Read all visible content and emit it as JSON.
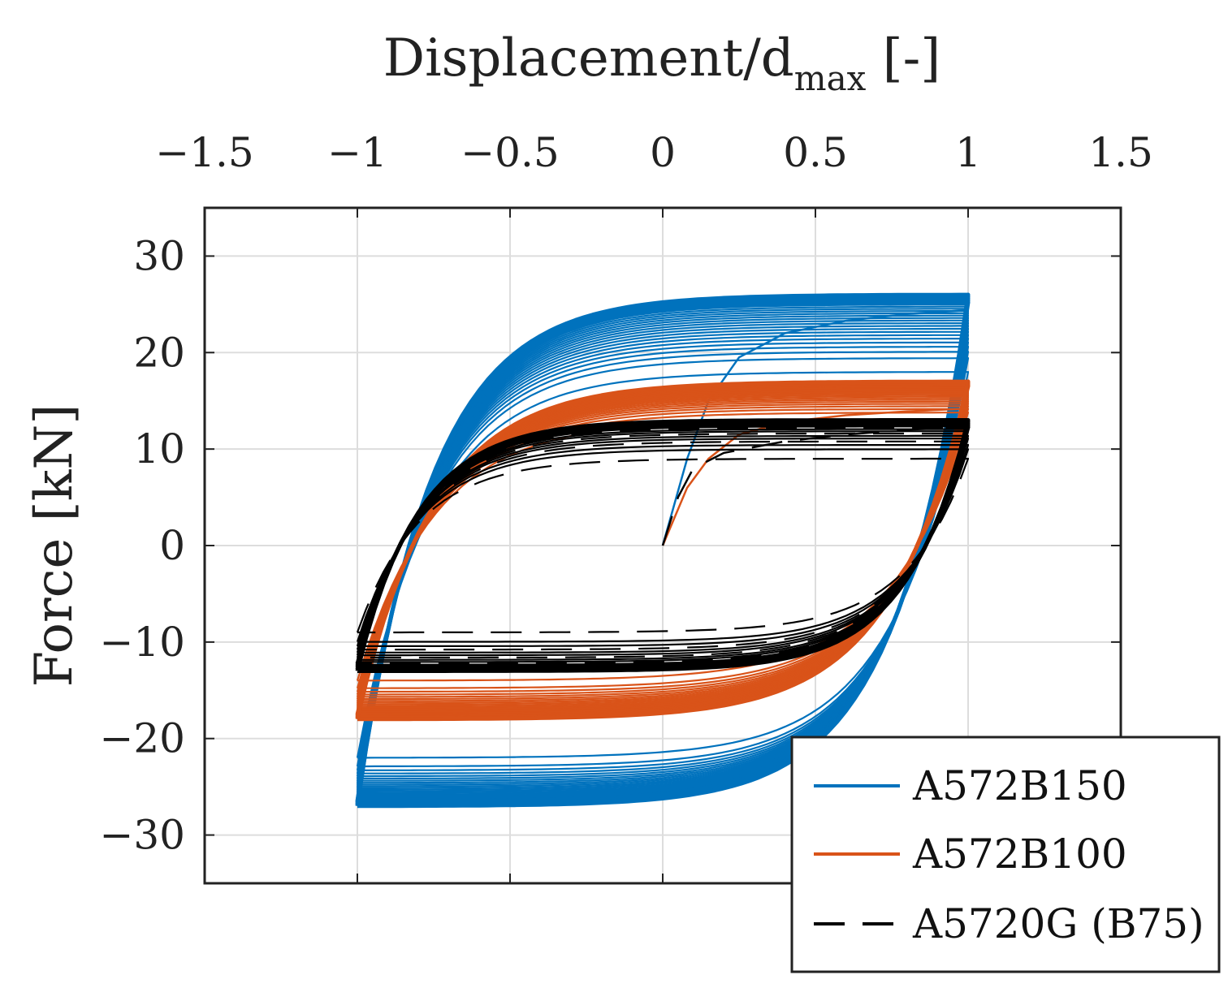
{
  "chart_data": {
    "type": "line",
    "title": "",
    "xlabel": {
      "main": "Displacement/d",
      "subscript": "max",
      "suffix": " [-]"
    },
    "ylabel": "Force [kN]",
    "x_axis_position": "top",
    "xlim": [
      -1.5,
      1.5
    ],
    "ylim": [
      -35,
      35
    ],
    "xticks": [
      -1.5,
      -1,
      -0.5,
      0,
      0.5,
      1,
      1.5
    ],
    "xtick_labels": [
      "−1.5",
      "−1",
      "−0.5",
      "0",
      "0.5",
      "1",
      "1.5"
    ],
    "yticks": [
      30,
      20,
      10,
      0,
      -10,
      -20,
      -30
    ],
    "ytick_labels": [
      "30",
      "20",
      "10",
      "0",
      "−10",
      "−20",
      "−30"
    ],
    "grid": true,
    "legend_position": "bottom-right",
    "colors": {
      "A572B150": "#0072BD",
      "A572B100": "#D95319",
      "A5720G": "#000000",
      "grid": "#dddddd",
      "axis": "#222222"
    },
    "series": [
      {
        "name": "A572B150",
        "style": "solid",
        "color": "#0072BD",
        "loops": 24,
        "peak_force_range": [
          18,
          26
        ],
        "min_force_range": [
          -22,
          -27
        ],
        "x_range": [
          -1,
          1
        ],
        "initial_branch": {
          "x": [
            0,
            0.08,
            0.15,
            0.25,
            0.4,
            0.6,
            0.8,
            1.0
          ],
          "y": [
            0,
            9,
            15,
            19.5,
            22,
            23.3,
            24,
            24.4
          ]
        }
      },
      {
        "name": "A572B100",
        "style": "solid",
        "color": "#D95319",
        "loops": 20,
        "peak_force_range": [
          13,
          17
        ],
        "min_force_range": [
          -14,
          -18
        ],
        "x_range": [
          -1,
          1
        ],
        "initial_branch": {
          "x": [
            0,
            0.08,
            0.15,
            0.25,
            0.4,
            0.6,
            0.8,
            1.0
          ],
          "y": [
            0,
            6,
            9,
            11.5,
            12.8,
            13.5,
            13.9,
            14.2
          ]
        }
      },
      {
        "name": "A5720G (B75)",
        "style": "dashed",
        "color": "#000000",
        "loops": 14,
        "peak_force_range": [
          9,
          13
        ],
        "min_force_range": [
          -9,
          -13
        ],
        "x_range": [
          -1,
          1
        ],
        "initial_branch": {
          "x": [
            0,
            0.05,
            0.1,
            0.2,
            0.4,
            0.6,
            0.8,
            1.0
          ],
          "y": [
            0,
            5,
            8,
            9.6,
            10.8,
            11.5,
            12,
            12.3
          ]
        }
      }
    ]
  }
}
